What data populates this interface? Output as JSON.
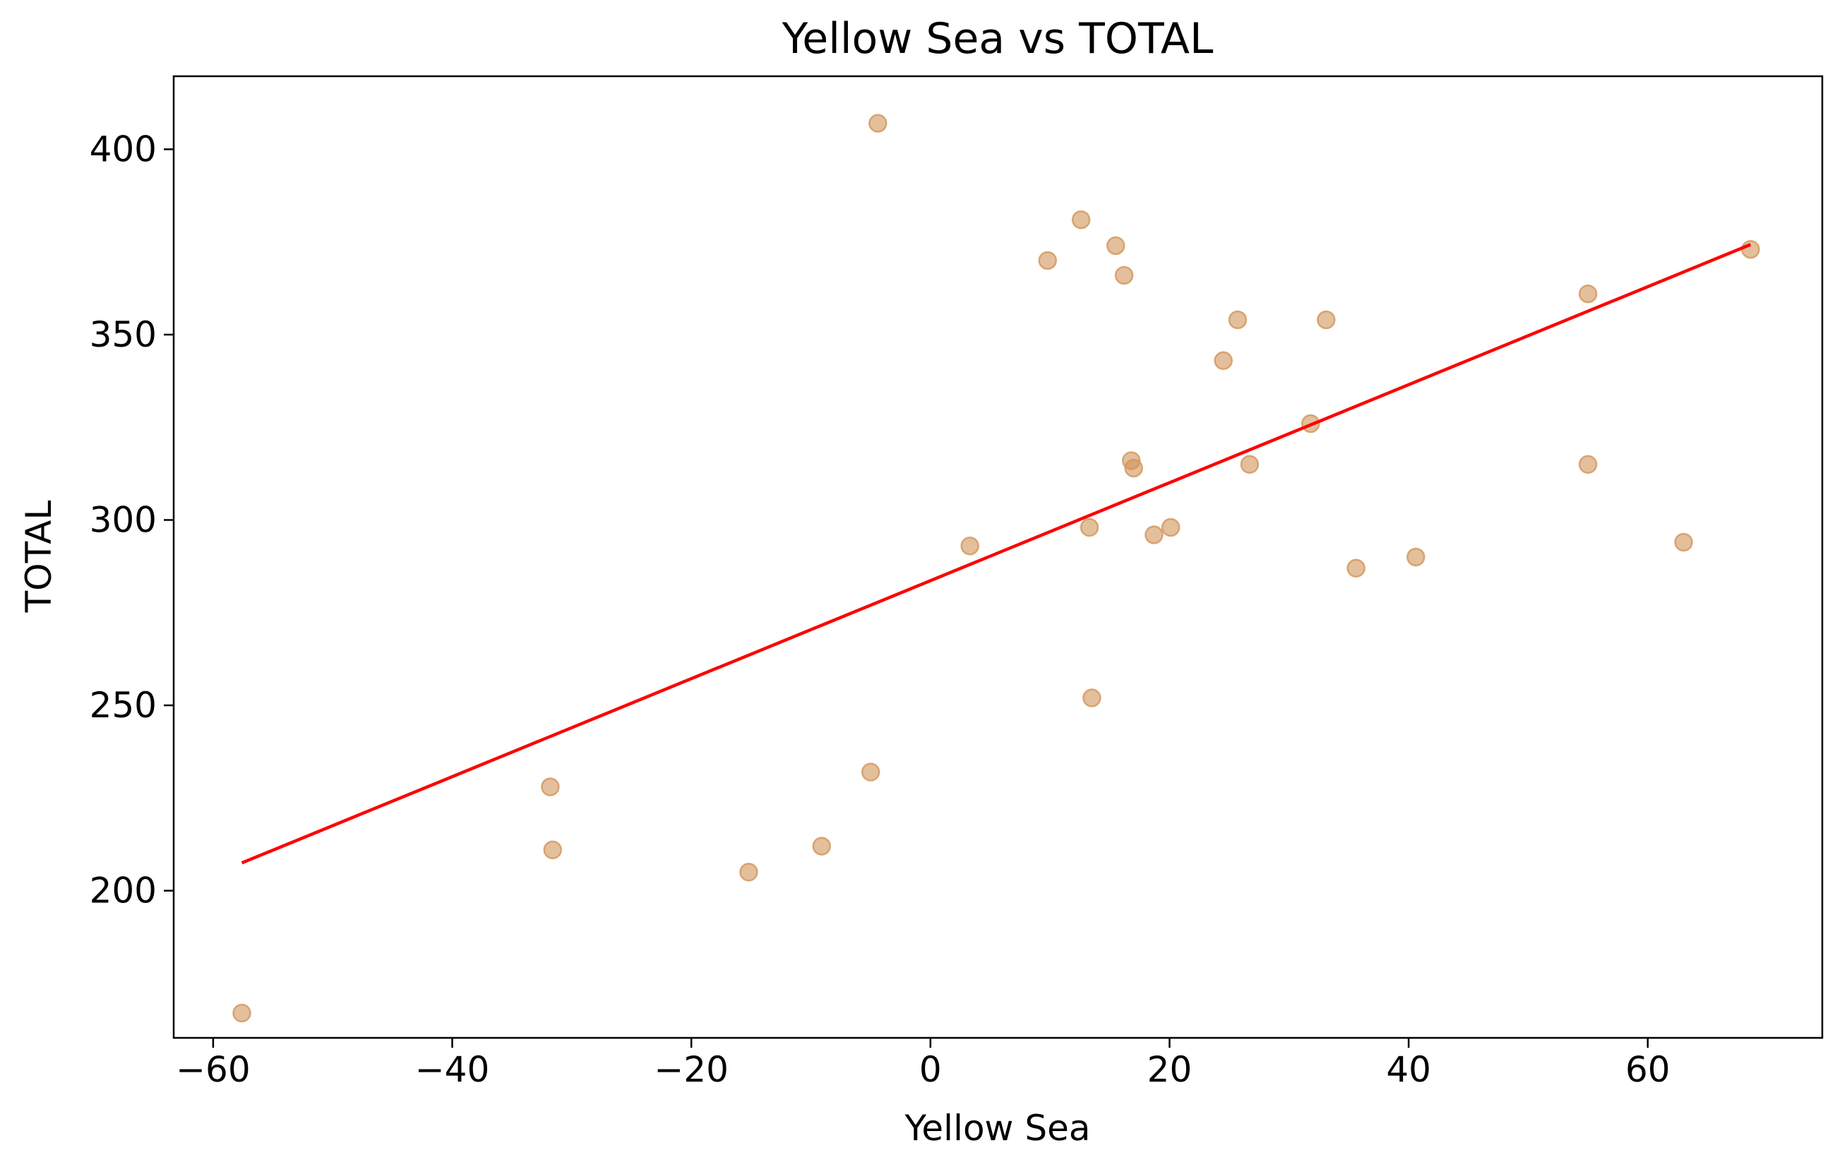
{
  "chart_data": {
    "type": "scatter",
    "title": "Yellow Sea vs TOTAL",
    "xlabel": "Yellow Sea",
    "ylabel": "TOTAL",
    "xlim": [
      -63.3,
      74.6
    ],
    "ylim": [
      160.3,
      419.7
    ],
    "xticks": [
      -60,
      -40,
      -20,
      0,
      20,
      40,
      60
    ],
    "xtick_labels": [
      "−60",
      "−40",
      "−20",
      "0",
      "20",
      "40",
      "60"
    ],
    "yticks": [
      200,
      250,
      300,
      350,
      400
    ],
    "ytick_labels": [
      "200",
      "250",
      "300",
      "350",
      "400"
    ],
    "grid": false,
    "point_color": "#d2955a",
    "line_color": "#ff0000",
    "points": [
      {
        "x": -57.6,
        "y": 167
      },
      {
        "x": -31.8,
        "y": 228
      },
      {
        "x": -31.6,
        "y": 211
      },
      {
        "x": -15.2,
        "y": 205
      },
      {
        "x": -9.1,
        "y": 212
      },
      {
        "x": -5.0,
        "y": 232
      },
      {
        "x": -4.4,
        "y": 407
      },
      {
        "x": 3.3,
        "y": 293
      },
      {
        "x": 9.8,
        "y": 370
      },
      {
        "x": 12.6,
        "y": 381
      },
      {
        "x": 13.3,
        "y": 298
      },
      {
        "x": 13.5,
        "y": 252
      },
      {
        "x": 15.5,
        "y": 374
      },
      {
        "x": 16.2,
        "y": 366
      },
      {
        "x": 16.8,
        "y": 316
      },
      {
        "x": 17.0,
        "y": 314
      },
      {
        "x": 18.7,
        "y": 296
      },
      {
        "x": 20.1,
        "y": 298
      },
      {
        "x": 24.5,
        "y": 343
      },
      {
        "x": 25.7,
        "y": 354
      },
      {
        "x": 26.7,
        "y": 315
      },
      {
        "x": 31.8,
        "y": 326
      },
      {
        "x": 33.1,
        "y": 354
      },
      {
        "x": 35.6,
        "y": 287
      },
      {
        "x": 40.6,
        "y": 290
      },
      {
        "x": 55.0,
        "y": 361
      },
      {
        "x": 55.0,
        "y": 315
      },
      {
        "x": 63.0,
        "y": 294
      },
      {
        "x": 68.6,
        "y": 373
      }
    ],
    "trendline": {
      "x": [
        -57.6,
        68.6
      ],
      "y": [
        207.5,
        374.3
      ]
    }
  }
}
